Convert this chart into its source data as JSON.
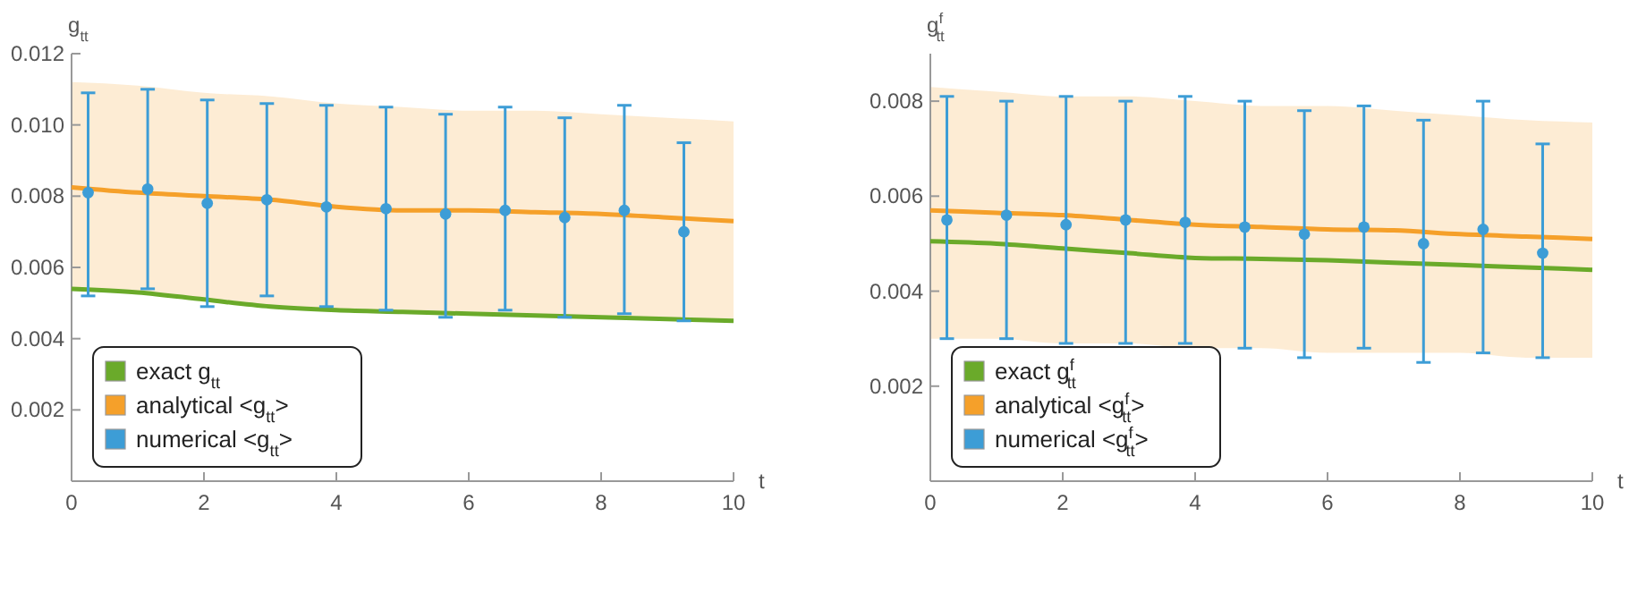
{
  "chart_data": [
    {
      "type": "line",
      "ylabel": "g$_{tt}$",
      "xlabel": "t",
      "xlim": [
        0,
        10
      ],
      "ylim": [
        0,
        0.012
      ],
      "xticks": [
        0,
        2,
        4,
        6,
        8,
        10
      ],
      "yticks": [
        {
          "value": 0.002,
          "label": "0.002"
        },
        {
          "value": 0.004,
          "label": "0.004"
        },
        {
          "value": 0.006,
          "label": "0.006"
        },
        {
          "value": 0.008,
          "label": "0.008"
        },
        {
          "value": 0.01,
          "label": "0.010"
        },
        {
          "value": 0.012,
          "label": "0.012"
        }
      ],
      "grid": false,
      "legend": "bottom left",
      "series": [
        {
          "name": "exact g$_{tt}$",
          "color": "#6aaa2a",
          "x": [
            0,
            1,
            2,
            3,
            4,
            5,
            6,
            7,
            8,
            9,
            10
          ],
          "values": [
            0.0054,
            0.0053,
            0.0051,
            0.0049,
            0.0048,
            0.00475,
            0.0047,
            0.00465,
            0.0046,
            0.00455,
            0.0045
          ]
        },
        {
          "name": "analytical <g$_{tt}$>",
          "color": "#f5a02a",
          "x": [
            0,
            1,
            2,
            3,
            4,
            5,
            6,
            7,
            8,
            9,
            10
          ],
          "values": [
            0.00825,
            0.0081,
            0.008,
            0.0079,
            0.0077,
            0.0076,
            0.0076,
            0.00755,
            0.0075,
            0.0074,
            0.0073
          ],
          "upper": [
            0.0112,
            0.0111,
            0.0109,
            0.0108,
            0.0106,
            0.0105,
            0.0104,
            0.0104,
            0.0103,
            0.0102,
            0.0101
          ],
          "lower": [
            0.0054,
            0.0053,
            0.0051,
            0.0049,
            0.0048,
            0.00475,
            0.0047,
            0.00465,
            0.0046,
            0.00455,
            0.0045
          ]
        },
        {
          "name": "numerical <g$_{tt}$>",
          "type": "scatter",
          "color": "#3d9dd6",
          "marker": "circle",
          "x": [
            0.25,
            1.15,
            2.05,
            2.95,
            3.85,
            4.75,
            5.65,
            6.55,
            7.45,
            8.35,
            9.25
          ],
          "values": [
            0.0081,
            0.0082,
            0.0078,
            0.0079,
            0.0077,
            0.00765,
            0.0075,
            0.0076,
            0.0074,
            0.0076,
            0.007
          ],
          "errors": [
            [
              0.0052,
              0.0109
            ],
            [
              0.0054,
              0.011
            ],
            [
              0.0049,
              0.0107
            ],
            [
              0.0052,
              0.0106
            ],
            [
              0.0049,
              0.01055
            ],
            [
              0.0048,
              0.0105
            ],
            [
              0.0046,
              0.0103
            ],
            [
              0.0048,
              0.0105
            ],
            [
              0.0046,
              0.0102
            ],
            [
              0.0047,
              0.01055
            ],
            [
              0.0045,
              0.0095
            ]
          ]
        }
      ]
    },
    {
      "type": "line",
      "ylabel": "g$^{f}$$_{tt}$",
      "xlabel": "t",
      "xlim": [
        0,
        10
      ],
      "ylim": [
        0,
        0.009
      ],
      "xticks": [
        0,
        2,
        4,
        6,
        8,
        10
      ],
      "yticks": [
        {
          "value": 0.002,
          "label": "0.002"
        },
        {
          "value": 0.004,
          "label": "0.004"
        },
        {
          "value": 0.006,
          "label": "0.006"
        },
        {
          "value": 0.008,
          "label": "0.008"
        }
      ],
      "grid": false,
      "legend": "bottom left",
      "series": [
        {
          "name": "exact g$^{f}$$_{tt}$",
          "color": "#6aaa2a",
          "x": [
            0,
            1,
            2,
            3,
            4,
            5,
            6,
            7,
            8,
            9,
            10
          ],
          "values": [
            0.00505,
            0.005,
            0.0049,
            0.0048,
            0.0047,
            0.00468,
            0.00465,
            0.0046,
            0.00455,
            0.0045,
            0.00445
          ]
        },
        {
          "name": "analytical <g$^{f}$$_{tt}$>",
          "color": "#f5a02a",
          "x": [
            0,
            1,
            2,
            3,
            4,
            5,
            6,
            7,
            8,
            9,
            10
          ],
          "values": [
            0.0057,
            0.00565,
            0.0056,
            0.0055,
            0.0054,
            0.00535,
            0.0053,
            0.00528,
            0.0052,
            0.00515,
            0.0051
          ],
          "upper": [
            0.0083,
            0.0082,
            0.0081,
            0.0081,
            0.008,
            0.0079,
            0.0079,
            0.0078,
            0.0077,
            0.0076,
            0.00755
          ],
          "lower": [
            0.003,
            0.003,
            0.0029,
            0.0029,
            0.0028,
            0.0028,
            0.0027,
            0.0027,
            0.0027,
            0.0026,
            0.0026
          ]
        },
        {
          "name": "numerical <g$^{f}$$_{tt}$>",
          "type": "scatter",
          "color": "#3d9dd6",
          "marker": "circle",
          "x": [
            0.25,
            1.15,
            2.05,
            2.95,
            3.85,
            4.75,
            5.65,
            6.55,
            7.45,
            8.35,
            9.25
          ],
          "values": [
            0.0055,
            0.0056,
            0.0054,
            0.0055,
            0.00545,
            0.00535,
            0.0052,
            0.00535,
            0.005,
            0.0053,
            0.0048
          ],
          "errors": [
            [
              0.003,
              0.0081
            ],
            [
              0.003,
              0.008
            ],
            [
              0.0029,
              0.0081
            ],
            [
              0.0029,
              0.008
            ],
            [
              0.0029,
              0.0081
            ],
            [
              0.0028,
              0.008
            ],
            [
              0.0026,
              0.0078
            ],
            [
              0.0028,
              0.0079
            ],
            [
              0.0025,
              0.0076
            ],
            [
              0.0027,
              0.008
            ],
            [
              0.0026,
              0.0071
            ]
          ]
        }
      ]
    }
  ]
}
